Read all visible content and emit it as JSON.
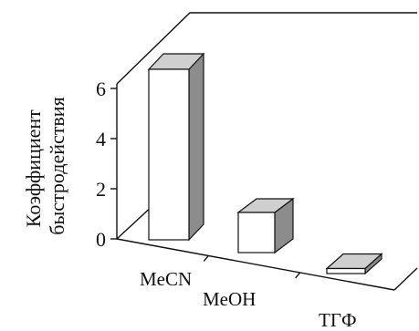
{
  "chart_data": {
    "type": "bar",
    "title": "",
    "ylabel": [
      "Коэффициент",
      "быстродействия"
    ],
    "xlabel": "",
    "categories": [
      "MeCN",
      "MeOH",
      "ТГФ"
    ],
    "values": [
      6.8,
      1.6,
      0.2
    ],
    "ylim": [
      0,
      7
    ],
    "yticks": [
      "0",
      "2",
      "4",
      "6"
    ],
    "grid": false,
    "style": "3d-bar",
    "colors": {
      "front": "#ffffff",
      "top": "#cfcfcf",
      "side": "#8c8c8c",
      "line": "#111111"
    }
  }
}
